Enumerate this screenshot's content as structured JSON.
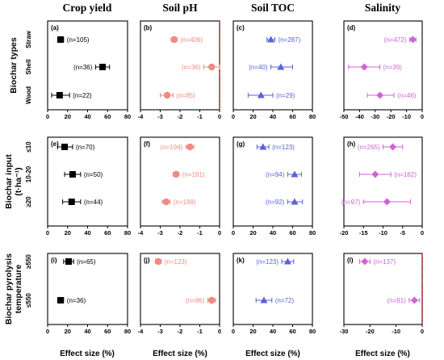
{
  "colors": {
    "Crop yield": "#000000",
    "Soil pH": "#f08a80",
    "Soil TOC": "#5a63d6",
    "Salinity": "#d063d6",
    "refline": "#cc0000"
  },
  "col_titles": [
    "Crop yield",
    "Soil pH",
    "Soil TOC",
    "Salinity"
  ],
  "row_titles": [
    {
      "lines": [
        "Biochar types"
      ]
    },
    {
      "lines": [
        "Biochar input",
        "(t·ha⁻¹)"
      ]
    },
    {
      "lines": [
        "Biochar pyrolysis",
        "temperature"
      ]
    }
  ],
  "row_labels": [
    [
      "Straw",
      "Shell",
      "Wood"
    ],
    [
      "≤10",
      "10-20",
      "≥20"
    ],
    [
      "≥550",
      "≤550"
    ]
  ],
  "xlabel": "Effect size (%)",
  "chart_data": [
    {
      "letter": "(a)",
      "type": "scatter",
      "row": 0,
      "col": 0,
      "metric": "Crop yield",
      "marker": "square",
      "xlim": [
        0,
        80
      ],
      "ticks": [
        "0",
        "20",
        "40",
        "60",
        "80"
      ],
      "tickvals": [
        0,
        20,
        40,
        60,
        80
      ],
      "refline": null,
      "points": [
        {
          "category": "Straw",
          "x": 13,
          "lo": 10,
          "hi": 16,
          "n": "(n=105)"
        },
        {
          "category": "Shell",
          "x": 55,
          "lo": 48,
          "hi": 62,
          "n": "(n=36)"
        },
        {
          "category": "Wood",
          "x": 12,
          "lo": 4,
          "hi": 22,
          "n": "(n=22)"
        }
      ]
    },
    {
      "letter": "(b)",
      "type": "scatter",
      "row": 0,
      "col": 1,
      "metric": "Soil pH",
      "marker": "circle",
      "xlim": [
        -4,
        0
      ],
      "ticks": [
        "-4",
        "-3",
        "-2",
        "-1",
        "0"
      ],
      "tickvals": [
        -4,
        -3,
        -2,
        -1,
        0
      ],
      "refline": 0,
      "points": [
        {
          "category": "Straw",
          "x": -2.3,
          "lo": -2.45,
          "hi": -2.15,
          "n": "(n=406)"
        },
        {
          "category": "Shell",
          "x": -0.4,
          "lo": -0.8,
          "hi": 0.0,
          "n": "(n=36)"
        },
        {
          "category": "Wood",
          "x": -2.65,
          "lo": -3.0,
          "hi": -2.35,
          "n": "(n=85)"
        }
      ]
    },
    {
      "letter": "(c)",
      "type": "scatter",
      "row": 0,
      "col": 2,
      "metric": "Soil TOC",
      "marker": "triangle",
      "xlim": [
        0,
        80
      ],
      "ticks": [
        "0",
        "20",
        "40",
        "60",
        "80"
      ],
      "tickvals": [
        0,
        20,
        40,
        60,
        80
      ],
      "refline": null,
      "points": [
        {
          "category": "Straw",
          "x": 38,
          "lo": 34,
          "hi": 42,
          "n": "(n=287)"
        },
        {
          "category": "Shell",
          "x": 48,
          "lo": 38,
          "hi": 60,
          "n": "(n=40)"
        },
        {
          "category": "Wood",
          "x": 28,
          "lo": 15,
          "hi": 40,
          "n": "(n=29)"
        }
      ]
    },
    {
      "letter": "(d)",
      "type": "scatter",
      "row": 0,
      "col": 3,
      "metric": "Salinity",
      "marker": "diamond",
      "xlim": [
        -50,
        0
      ],
      "ticks": [
        "-50",
        "-40",
        "-30",
        "-20",
        "-10",
        "0"
      ],
      "tickvals": [
        -50,
        -40,
        -30,
        -20,
        -10,
        0
      ],
      "refline": null,
      "points": [
        {
          "category": "Straw",
          "x": -6,
          "lo": -8,
          "hi": -4,
          "n": "(n=472)"
        },
        {
          "category": "Shell",
          "x": -37,
          "lo": -47,
          "hi": -27,
          "n": "(n=39)"
        },
        {
          "category": "Wood",
          "x": -27,
          "lo": -35,
          "hi": -18,
          "n": "(n=46)"
        }
      ]
    },
    {
      "letter": "(e)",
      "type": "scatter",
      "row": 1,
      "col": 0,
      "metric": "Crop yield",
      "marker": "square",
      "xlim": [
        0,
        80
      ],
      "ticks": [
        "0",
        "20",
        "40",
        "60",
        "80"
      ],
      "tickvals": [
        0,
        20,
        40,
        60,
        80
      ],
      "refline": null,
      "points": [
        {
          "category": "≤10",
          "x": 17,
          "lo": 10,
          "hi": 25,
          "n": "(n=70)"
        },
        {
          "category": "10-20",
          "x": 25,
          "lo": 17,
          "hi": 33,
          "n": "(n=50)"
        },
        {
          "category": "≥20",
          "x": 24,
          "lo": 15,
          "hi": 33,
          "n": "(n=44)"
        }
      ]
    },
    {
      "letter": "(f)",
      "type": "scatter",
      "row": 1,
      "col": 1,
      "metric": "Soil pH",
      "marker": "circle",
      "xlim": [
        -4,
        0
      ],
      "ticks": [
        "-4",
        "-3",
        "-2",
        "-1",
        "0"
      ],
      "tickvals": [
        -4,
        -3,
        -2,
        -1,
        0
      ],
      "refline": null,
      "points": [
        {
          "category": "≤10",
          "x": -1.5,
          "lo": -1.7,
          "hi": -1.3,
          "n": "(n=194)"
        },
        {
          "category": "10-20",
          "x": -2.2,
          "lo": -2.35,
          "hi": -2.05,
          "n": "(n=161)"
        },
        {
          "category": "≥20",
          "x": -2.7,
          "lo": -2.9,
          "hi": -2.5,
          "n": "(n=168)"
        }
      ]
    },
    {
      "letter": "(g)",
      "type": "scatter",
      "row": 1,
      "col": 2,
      "metric": "Soil TOC",
      "marker": "triangle",
      "xlim": [
        0,
        80
      ],
      "ticks": [
        "0",
        "20",
        "40",
        "60",
        "80"
      ],
      "tickvals": [
        0,
        20,
        40,
        60,
        80
      ],
      "refline": null,
      "points": [
        {
          "category": "≤10",
          "x": 30,
          "lo": 24,
          "hi": 36,
          "n": "(n=123)"
        },
        {
          "category": "10-20",
          "x": 62,
          "lo": 55,
          "hi": 69,
          "n": "(n=94)"
        },
        {
          "category": "≥20",
          "x": 62,
          "lo": 55,
          "hi": 70,
          "n": "(n=92)"
        }
      ]
    },
    {
      "letter": "(h)",
      "type": "scatter",
      "row": 1,
      "col": 3,
      "metric": "Salinity",
      "marker": "diamond",
      "xlim": [
        -20,
        0
      ],
      "ticks": [
        "-20",
        "-15",
        "-10",
        "-5",
        "0"
      ],
      "tickvals": [
        -20,
        -15,
        -10,
        -5,
        0
      ],
      "refline": null,
      "points": [
        {
          "category": "≤10",
          "x": -7.5,
          "lo": -10,
          "hi": -5,
          "n": "(n=265)"
        },
        {
          "category": "10-20",
          "x": -12,
          "lo": -16,
          "hi": -8,
          "n": "(n=162)"
        },
        {
          "category": "≥20",
          "x": -9,
          "lo": -15,
          "hi": -3,
          "n": "(n=97)"
        }
      ]
    },
    {
      "letter": "(i)",
      "type": "scatter",
      "row": 2,
      "col": 0,
      "metric": "Crop yield",
      "marker": "square",
      "xlim": [
        0,
        80
      ],
      "ticks": [
        "0",
        "20",
        "40",
        "60",
        "80"
      ],
      "tickvals": [
        0,
        20,
        40,
        60,
        80
      ],
      "refline": null,
      "points": [
        {
          "category": "≥550",
          "x": 21,
          "lo": 16,
          "hi": 26,
          "n": "(n=65)"
        },
        {
          "category": "≤550",
          "x": 13,
          "lo": 10,
          "hi": 16,
          "n": "(n=36)"
        }
      ]
    },
    {
      "letter": "(j)",
      "type": "scatter",
      "row": 2,
      "col": 1,
      "metric": "Soil pH",
      "marker": "circle",
      "xlim": [
        -4,
        0
      ],
      "ticks": [
        "-4",
        "-3",
        "-2",
        "-1",
        "0"
      ],
      "tickvals": [
        -4,
        -3,
        -2,
        -1,
        0
      ],
      "refline": null,
      "points": [
        {
          "category": "≥550",
          "x": -3.1,
          "lo": -3.25,
          "hi": -2.95,
          "n": "(n=123)"
        },
        {
          "category": "≤550",
          "x": -0.4,
          "lo": -0.6,
          "hi": -0.2,
          "n": "(n=86)"
        }
      ]
    },
    {
      "letter": "(k)",
      "type": "scatter",
      "row": 2,
      "col": 2,
      "metric": "Soil TOC",
      "marker": "triangle",
      "xlim": [
        0,
        80
      ],
      "ticks": [
        "0",
        "20",
        "40",
        "60",
        "80"
      ],
      "tickvals": [
        0,
        20,
        40,
        60,
        80
      ],
      "refline": null,
      "points": [
        {
          "category": "≥550",
          "x": 55,
          "lo": 49,
          "hi": 61,
          "n": "(n=123)"
        },
        {
          "category": "≤550",
          "x": 31,
          "lo": 23,
          "hi": 39,
          "n": "(n=72)"
        }
      ]
    },
    {
      "letter": "(l)",
      "type": "scatter",
      "row": 2,
      "col": 3,
      "metric": "Salinity",
      "marker": "diamond",
      "xlim": [
        -30,
        0
      ],
      "ticks": [
        "-30",
        "-20",
        "-10",
        "0"
      ],
      "tickvals": [
        -30,
        -20,
        -10,
        0
      ],
      "refline": 0,
      "points": [
        {
          "category": "≥550",
          "x": -22,
          "lo": -24,
          "hi": -20,
          "n": "(n=137)"
        },
        {
          "category": "≤550",
          "x": -3,
          "lo": -5,
          "hi": -1,
          "n": "(n=91)"
        }
      ]
    }
  ]
}
